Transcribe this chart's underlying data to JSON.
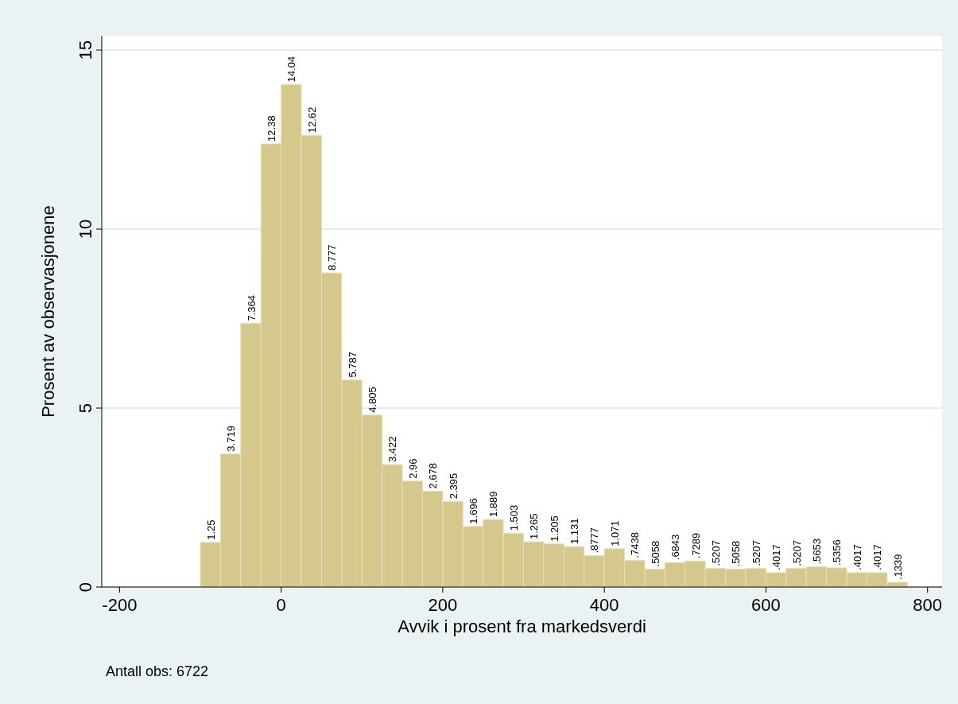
{
  "chart_data": {
    "type": "histogram",
    "xlabel": "Avvik i prosent fra markedsverdi",
    "ylabel": "Prosent av observasjonene",
    "annotations": [
      "Antall obs: 6722"
    ],
    "bins": [
      -100,
      -75,
      -50,
      -25,
      0,
      25,
      50,
      75,
      100,
      125,
      150,
      175,
      200,
      225,
      250,
      275,
      300,
      325,
      350,
      375,
      400,
      425,
      450,
      475,
      500,
      525,
      550,
      575,
      600,
      625,
      650,
      675,
      700,
      725,
      750,
      775
    ],
    "values": [
      1.25,
      3.719,
      7.364,
      12.38,
      14.04,
      12.62,
      8.777,
      5.787,
      4.805,
      3.422,
      2.96,
      2.678,
      2.395,
      1.696,
      1.889,
      1.503,
      1.265,
      1.205,
      1.131,
      0.8777,
      1.071,
      0.7438,
      0.5058,
      0.6843,
      0.7289,
      0.5207,
      0.5058,
      0.5207,
      0.4017,
      0.5207,
      0.5653,
      0.5356,
      0.4017,
      0.4017,
      0.1339
    ],
    "value_labels": [
      "1.25",
      "3.719",
      "7.364",
      "12.38",
      "14.04",
      "12.62",
      "8.777",
      "5.787",
      "4.805",
      "3.422",
      "2.96",
      "2.678",
      "2.395",
      "1.696",
      "1.889",
      "1.503",
      "1.265",
      "1.205",
      "1.131",
      ".8777",
      "1.071",
      ".7438",
      ".5058",
      ".6843",
      ".7289",
      ".5207",
      ".5058",
      ".5207",
      ".4017",
      ".5207",
      ".5653",
      ".5356",
      ".4017",
      ".4017",
      ".1339"
    ],
    "color": "#d4c88c",
    "xlim": [
      -222,
      818
    ],
    "xticks": [
      -200,
      0,
      200,
      400,
      600,
      800
    ],
    "ylim": [
      0,
      15.4
    ],
    "yticks": [
      0,
      5,
      10,
      15
    ],
    "grid": "y"
  }
}
